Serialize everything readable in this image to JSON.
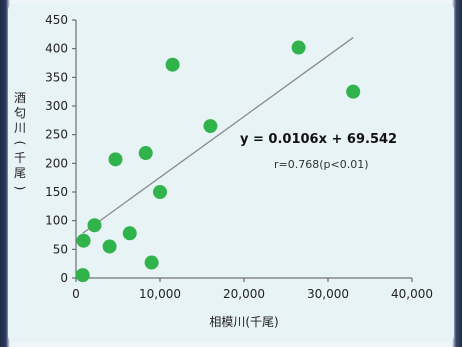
{
  "chart_data": {
    "type": "scatter",
    "title": "",
    "xlabel": "相模川(千尾)",
    "ylabel": "酒匂川(千尾)",
    "xlim": [
      0,
      40000
    ],
    "ylim": [
      0,
      450
    ],
    "x_ticks": [
      "0",
      "10,000",
      "20,000",
      "30,000",
      "40,000"
    ],
    "x_tick_values": [
      0,
      10000,
      20000,
      30000,
      40000
    ],
    "y_ticks": [
      "0",
      "50",
      "100",
      "150",
      "200",
      "250",
      "300",
      "350",
      "400",
      "450"
    ],
    "y_tick_values": [
      0,
      50,
      100,
      150,
      200,
      250,
      300,
      350,
      400,
      450
    ],
    "grid": false,
    "marker_color": "#2fb34a",
    "trend_color": "#8a8a8a",
    "points": [
      {
        "x": 800,
        "y": 5
      },
      {
        "x": 900,
        "y": 65
      },
      {
        "x": 2200,
        "y": 92
      },
      {
        "x": 4000,
        "y": 55
      },
      {
        "x": 4700,
        "y": 207
      },
      {
        "x": 6400,
        "y": 78
      },
      {
        "x": 8300,
        "y": 218
      },
      {
        "x": 9000,
        "y": 27
      },
      {
        "x": 10000,
        "y": 150
      },
      {
        "x": 11500,
        "y": 372
      },
      {
        "x": 16000,
        "y": 265
      },
      {
        "x": 26500,
        "y": 402
      },
      {
        "x": 33000,
        "y": 325
      }
    ],
    "trendline": {
      "slope": 0.0106,
      "intercept": 69.542,
      "x_range": [
        800,
        33000
      ]
    },
    "annotations": {
      "equation": "y = 0.0106x + 69.542",
      "r_value": "r=0.768(p<0.01)"
    }
  }
}
